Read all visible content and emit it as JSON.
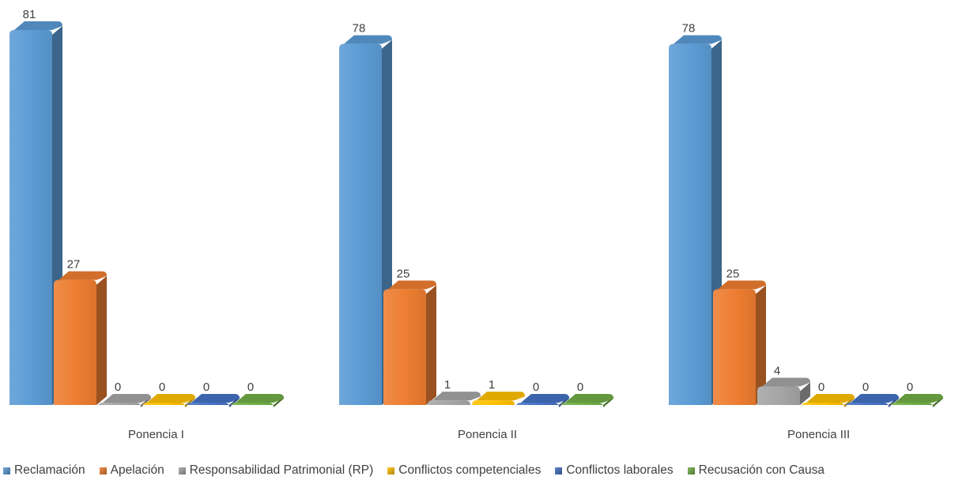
{
  "chart_data": {
    "type": "bar",
    "categories": [
      "Ponencia I",
      "Ponencia II",
      "Ponencia III"
    ],
    "series": [
      {
        "name": "Reclamación",
        "values": [
          81,
          78,
          78
        ],
        "color": "#5b9bd5"
      },
      {
        "name": "Apelación",
        "values": [
          27,
          25,
          25
        ],
        "color": "#ed7d31"
      },
      {
        "name": "Responsabilidad Patrimonial (RP)",
        "values": [
          0,
          1,
          4
        ],
        "color": "#a5a5a5"
      },
      {
        "name": "Conflictos competenciales",
        "values": [
          0,
          1,
          0
        ],
        "color": "#ffc000"
      },
      {
        "name": "Conflictos laborales",
        "values": [
          0,
          0,
          0
        ],
        "color": "#4472c4"
      },
      {
        "name": "Recusación con Causa",
        "values": [
          0,
          0,
          0
        ],
        "color": "#70ad47"
      }
    ],
    "ylim": [
      0,
      81
    ],
    "legend_position": "bottom",
    "grid": false
  }
}
